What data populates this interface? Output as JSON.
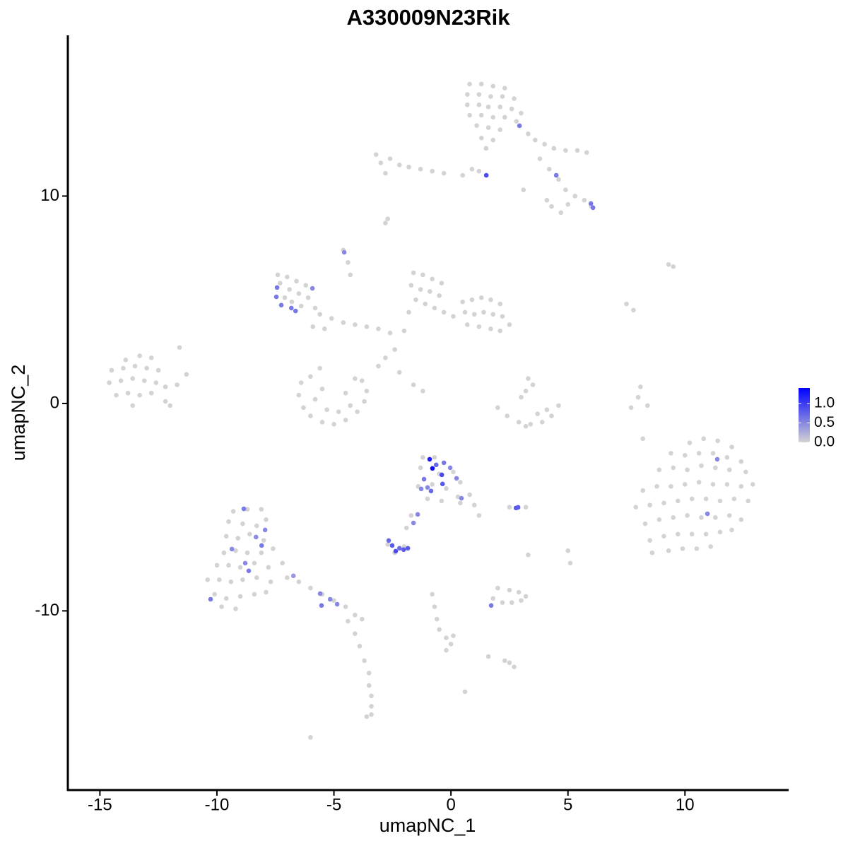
{
  "chart_data": {
    "type": "scatter",
    "title": "A330009N23Rik",
    "x_label": "umapNC_1",
    "y_label": "umapNC_2",
    "xlim": [
      -16.37,
      14.4
    ],
    "ylim": [
      -18.64,
      17.75
    ],
    "xticks": [
      -15,
      -10,
      -5,
      0,
      5,
      10
    ],
    "yticks": [
      -10,
      0,
      10
    ],
    "colorbar": {
      "lim": [
        0,
        1.4
      ],
      "ticks": [
        {
          "value": 0,
          "label": "0.0"
        },
        0.5,
        {
          "value": 1,
          "label": "1.0"
        }
      ],
      "colors": [
        "#d3d3d3",
        "#0000ff"
      ]
    },
    "x": [
      0.8,
      1.3,
      1.8,
      2.3,
      0.7,
      1.2,
      1.7,
      2.2,
      2.7,
      0.7,
      1.2,
      1.6,
      2.1,
      2.6,
      3.0,
      0.8,
      1.3,
      1.8,
      2.3,
      2.8,
      1.1,
      1.6,
      2.1,
      1.3,
      1.8,
      1.5,
      3.3,
      3.6,
      4.0,
      4.4,
      4.9,
      5.4,
      5.8,
      3.8,
      4.2,
      4.6,
      4.9,
      5.3,
      5.7,
      6.0,
      5.0,
      4.3,
      4.7,
      4.1,
      3.1,
      1.2,
      -3.2,
      -3.0,
      -2.6,
      -2.2,
      -1.8,
      -1.3,
      -0.8,
      -0.3,
      0.5,
      0.9,
      -2.8,
      -2.8,
      -2.7,
      -4.6,
      -4.4,
      -4.3,
      -7.4,
      -7.0,
      -6.6,
      -6.2,
      -7.3,
      -6.9,
      -6.5,
      -6.1,
      -7.1,
      -6.8,
      -6.4,
      -5.8,
      -5.6,
      -5.1,
      -4.6,
      -4.1,
      -3.6,
      -3.1,
      -2.6,
      -2.0,
      -5.9,
      -5.4,
      -2.4,
      -2.8,
      -3.1,
      -2.2,
      -1.6,
      -1.2,
      -1.6,
      -1.2,
      -0.8,
      -0.4,
      -1.7,
      -1.3,
      -0.9,
      -0.5,
      -1.5,
      -1.1,
      -0.7,
      -0.3,
      0.1,
      -1.8,
      0.5,
      0.9,
      1.3,
      1.7,
      2.1,
      0.6,
      1.0,
      1.4,
      1.8,
      2.2,
      2.5,
      1.2,
      1.7,
      2.1,
      0.7,
      -5.6,
      -6.4,
      -6.5,
      -6.3,
      -6.0,
      -5.5,
      -5.0,
      -4.5,
      -4.0,
      -3.7,
      -3.6,
      -3.8,
      -5.8,
      -5.3,
      -4.8,
      -4.3,
      -5.5,
      -4.5,
      -4.1,
      -6.0,
      -13.9,
      -13.3,
      -12.8,
      -14.5,
      -14.0,
      -13.5,
      -13.0,
      -12.5,
      -14.6,
      -14.1,
      -13.6,
      -13.1,
      -12.6,
      -12.2,
      -14.3,
      -13.8,
      -13.3,
      -12.8,
      -13.6,
      -12.2,
      -12.0,
      -11.6,
      -11.3,
      -11.7,
      2.0,
      2.4,
      2.9,
      3.4,
      3.9,
      4.3,
      4.6,
      3.2,
      3.7,
      4.1,
      3.3,
      3.2,
      3.5,
      3.0,
      8.4,
      8.0,
      8.1,
      7.7,
      9.3,
      9.5,
      7.5,
      7.8,
      8.2,
      10.2,
      10.8,
      11.4,
      12.0,
      9.4,
      10.0,
      10.6,
      11.2,
      11.8,
      12.4,
      8.9,
      9.5,
      10.1,
      10.7,
      11.3,
      11.9,
      12.6,
      8.2,
      8.8,
      9.4,
      10.0,
      10.6,
      11.2,
      11.8,
      12.4,
      12.9,
      7.9,
      8.5,
      9.1,
      9.7,
      10.3,
      10.9,
      11.5,
      12.1,
      12.7,
      8.3,
      8.9,
      9.5,
      10.1,
      10.7,
      11.3,
      11.9,
      12.4,
      8.5,
      9.1,
      9.7,
      10.3,
      10.9,
      11.5,
      12.0,
      8.6,
      9.3,
      9.9,
      10.5,
      11.1,
      -1.2,
      -0.7,
      -1.3,
      -0.5,
      0.1,
      0.4,
      -1.4,
      -0.8,
      -0.2,
      0.3,
      0.8,
      1.0,
      1.2,
      -1.0,
      -0.4,
      -1.7,
      -1.9,
      2.5,
      -2.7,
      -2.4,
      -2.0,
      3.2,
      3.3,
      5.0,
      5.1,
      0.4,
      -9.3,
      -8.7,
      -8.1,
      -9.5,
      -8.9,
      -8.3,
      -7.9,
      -9.6,
      -9.1,
      -8.6,
      -8.0,
      -9.7,
      -9.2,
      -8.7,
      -8.1,
      -7.6,
      -10.0,
      -9.5,
      -9.0,
      -8.4,
      -7.8,
      -7.2,
      -10.4,
      -9.9,
      -9.4,
      -8.9,
      -8.3,
      -7.7,
      -10.1,
      -9.6,
      -9.0,
      -8.4,
      -7.9,
      -9.8,
      -9.2,
      -7.0,
      -6.5,
      -6.0,
      -5.5,
      -5.0,
      -4.5,
      -4.1,
      -3.8,
      -4.4,
      -4.1,
      -3.9,
      -3.7,
      -3.5,
      -3.5,
      -3.4,
      -3.4,
      -3.6,
      -3.4,
      -6.0,
      -0.8,
      -0.7,
      -0.6,
      -0.5,
      -0.2,
      0.0,
      -0.2,
      0.1,
      1.8,
      2.2,
      2.6,
      3.0,
      3.2,
      2.5,
      2.9,
      2.0,
      2.3,
      2.5,
      2.7,
      1.6,
      0.6,
      2.93,
      1.51,
      4.5,
      5.98,
      6.07,
      -4.56,
      -7.43,
      -7.46,
      -7.25,
      -6.82,
      -6.64,
      -5.92,
      -0.91,
      -0.79,
      -0.63,
      -0.39,
      -1.15,
      -1.0,
      -0.3,
      -0.03,
      0.24,
      0.45,
      -0.85,
      -0.36,
      -1.27,
      -1.6,
      -1.42,
      2.87,
      2.78,
      -2.66,
      -2.51,
      -2.36,
      -2.2,
      -2.02,
      -1.84,
      11.38,
      10.96,
      -8.85,
      -8.33,
      -8.09,
      -9.36,
      -8.79,
      -8.64,
      -7.94,
      -10.27,
      -6.73,
      -5.59,
      -5.53,
      -5.16,
      -4.86,
      1.72
    ],
    "values": [
      15.4,
      15.4,
      15.3,
      15.2,
      14.9,
      14.9,
      14.8,
      14.8,
      14.7,
      14.4,
      14.4,
      14.3,
      14.3,
      14.2,
      14.0,
      13.9,
      13.9,
      13.8,
      13.8,
      13.6,
      13.4,
      13.3,
      13.2,
      12.8,
      12.7,
      12.3,
      13.0,
      12.7,
      12.5,
      12.3,
      12.2,
      12.2,
      12.1,
      11.8,
      11.3,
      10.8,
      10.3,
      10.0,
      9.8,
      9.5,
      9.6,
      9.5,
      9.2,
      9.8,
      10.3,
      11.2,
      12.0,
      11.6,
      11.8,
      11.5,
      11.4,
      11.3,
      11.2,
      11.1,
      11.0,
      11.3,
      11.1,
      8.7,
      8.9,
      7.4,
      6.8,
      6.2,
      6.2,
      6.1,
      5.9,
      5.7,
      5.8,
      5.5,
      5.3,
      5.1,
      5.1,
      4.9,
      4.7,
      4.6,
      4.3,
      4.1,
      3.9,
      3.8,
      3.7,
      3.6,
      3.4,
      3.5,
      3.7,
      3.6,
      2.6,
      2.2,
      1.8,
      1.5,
      0.9,
      0.6,
      6.3,
      6.2,
      6.0,
      5.8,
      5.7,
      5.5,
      5.4,
      5.2,
      5.0,
      4.8,
      4.6,
      4.4,
      4.2,
      4.4,
      4.9,
      5.0,
      5.1,
      5.0,
      4.8,
      4.4,
      4.3,
      4.4,
      4.3,
      4.2,
      3.8,
      3.7,
      3.6,
      3.5,
      3.8,
      1.7,
      1.0,
      0.4,
      -0.2,
      -0.6,
      -0.9,
      -1.0,
      -0.8,
      -0.4,
      0.1,
      0.6,
      1.1,
      0.2,
      -0.3,
      -0.4,
      -0.1,
      0.7,
      0.5,
      1.2,
      1.3,
      2.1,
      2.3,
      2.2,
      1.6,
      1.7,
      1.8,
      1.7,
      1.6,
      1.0,
      1.1,
      1.2,
      1.1,
      1.0,
      0.8,
      0.4,
      0.5,
      0.4,
      0.5,
      -0.1,
      0.1,
      -0.1,
      2.7,
      1.4,
      0.9,
      -0.2,
      -0.6,
      -0.9,
      -1.0,
      -0.9,
      -0.6,
      -0.1,
      -1.1,
      -0.5,
      -0.3,
      1.2,
      0.6,
      0.9,
      0.3,
      -0.1,
      0.3,
      0.8,
      -0.2,
      6.7,
      6.6,
      4.8,
      4.5,
      -1.7,
      -1.9,
      -1.7,
      -1.8,
      -2.1,
      -2.4,
      -2.5,
      -2.4,
      -2.4,
      -2.6,
      -2.8,
      -3.2,
      -3.1,
      -3.2,
      -3.0,
      -3.1,
      -3.2,
      -3.3,
      -4.2,
      -4.0,
      -4.0,
      -3.9,
      -3.8,
      -3.9,
      -3.9,
      -4.0,
      -3.9,
      -5.0,
      -4.9,
      -4.8,
      -4.7,
      -4.6,
      -4.6,
      -4.7,
      -4.6,
      -4.7,
      -5.8,
      -5.6,
      -5.5,
      -5.4,
      -5.5,
      -5.5,
      -5.4,
      -5.6,
      -6.6,
      -6.4,
      -6.3,
      -6.3,
      -6.3,
      -6.2,
      -6.1,
      -7.2,
      -7.1,
      -7.0,
      -7.0,
      -6.9,
      -2.6,
      -2.6,
      -3.1,
      -3.4,
      -3.3,
      -3.8,
      -4.0,
      -3.9,
      -4.1,
      -4.5,
      -4.4,
      -4.9,
      -5.4,
      -4.6,
      -4.7,
      -5.4,
      -6.0,
      -5.0,
      -6.8,
      -7.2,
      -6.9,
      -5.0,
      -7.3,
      -7.1,
      -7.7,
      -4.8,
      -5.2,
      -5.1,
      -5.1,
      -5.7,
      -5.8,
      -5.9,
      -5.6,
      -6.4,
      -6.5,
      -6.3,
      -6.6,
      -7.2,
      -7.1,
      -7.2,
      -7.2,
      -7.0,
      -7.8,
      -7.8,
      -7.9,
      -7.7,
      -7.9,
      -7.7,
      -8.5,
      -8.5,
      -8.6,
      -8.5,
      -8.4,
      -8.6,
      -9.2,
      -9.4,
      -9.3,
      -9.2,
      -9.1,
      -9.8,
      -9.9,
      -8.4,
      -8.6,
      -8.9,
      -9.2,
      -9.5,
      -9.8,
      -10.2,
      -10.4,
      -10.5,
      -11.1,
      -11.7,
      -12.4,
      -13.0,
      -13.6,
      -14.1,
      -14.6,
      -15.1,
      -15.0,
      -16.1,
      -9.2,
      -9.8,
      -10.4,
      -10.9,
      -11.3,
      -11.6,
      -11.9,
      -11.2,
      -9.4,
      -9.6,
      -9.6,
      -9.5,
      -9.3,
      -9.0,
      -9.1,
      -8.9,
      -12.4,
      -12.5,
      -12.7,
      -12.2,
      -13.9,
      13.39,
      11.0,
      11.0,
      9.64,
      9.44,
      7.29,
      5.59,
      5.14,
      4.74,
      4.6,
      4.46,
      5.55,
      -2.69,
      -3.13,
      -2.96,
      -3.44,
      -3.65,
      -4.05,
      -2.86,
      -3.1,
      -3.61,
      -4.57,
      -4.22,
      -3.88,
      -4.12,
      -5.76,
      -5.35,
      -5.01,
      -5.04,
      -6.61,
      -6.85,
      -7.12,
      -6.98,
      -7.05,
      -6.98,
      -2.69,
      -5.32,
      -5.08,
      -6.44,
      -6.85,
      -7.02,
      -7.7,
      -8.07,
      -6.1,
      -9.44,
      -8.31,
      -9.17,
      -9.74,
      -9.44,
      -9.68,
      -9.74
    ],
    "expression": [
      0,
      0,
      0,
      0,
      0,
      0,
      0,
      0,
      0,
      0,
      0,
      0,
      0,
      0,
      0,
      0,
      0,
      0,
      0,
      0,
      0,
      0,
      0,
      0,
      0,
      0,
      0,
      0,
      0,
      0,
      0,
      0,
      0,
      0,
      0,
      0,
      0,
      0,
      0,
      0,
      0,
      0,
      0,
      0,
      0,
      0,
      0,
      0,
      0,
      0,
      0,
      0,
      0,
      0,
      0,
      0,
      0,
      0,
      0,
      0,
      0,
      0,
      0,
      0,
      0,
      0,
      0,
      0,
      0,
      0,
      0,
      0,
      0,
      0,
      0,
      0,
      0,
      0,
      0,
      0,
      0,
      0,
      0,
      0,
      0,
      0,
      0,
      0,
      0,
      0,
      0,
      0,
      0,
      0,
      0,
      0,
      0,
      0,
      0,
      0,
      0,
      0,
      0,
      0,
      0,
      0,
      0,
      0,
      0,
      0,
      0,
      0,
      0,
      0,
      0,
      0,
      0,
      0,
      0,
      0,
      0,
      0,
      0,
      0,
      0,
      0,
      0,
      0,
      0,
      0,
      0,
      0,
      0,
      0,
      0,
      0,
      0,
      0,
      0,
      0,
      0,
      0,
      0,
      0,
      0,
      0,
      0,
      0,
      0,
      0,
      0,
      0,
      0,
      0,
      0,
      0,
      0,
      0,
      0,
      0,
      0,
      0,
      0,
      0,
      0,
      0,
      0,
      0,
      0,
      0,
      0,
      0,
      0,
      0,
      0,
      0,
      0,
      0,
      0,
      0,
      0,
      0,
      0,
      0,
      0,
      0,
      0,
      0,
      0,
      0,
      0,
      0,
      0,
      0,
      0,
      0,
      0,
      0,
      0,
      0,
      0,
      0,
      0,
      0,
      0,
      0,
      0,
      0,
      0,
      0,
      0,
      0,
      0,
      0,
      0,
      0,
      0,
      0,
      0,
      0,
      0,
      0,
      0,
      0,
      0,
      0,
      0,
      0,
      0,
      0,
      0,
      0,
      0,
      0,
      0,
      0,
      0,
      0,
      0,
      0,
      0,
      0,
      0,
      0,
      0,
      0,
      0,
      0,
      0,
      0,
      0,
      0,
      0,
      0,
      0,
      0,
      0,
      0,
      0,
      0,
      0,
      0,
      0,
      0,
      0,
      0,
      0,
      0,
      0,
      0,
      0,
      0,
      0,
      0,
      0,
      0,
      0,
      0,
      0,
      0,
      0,
      0,
      0,
      0,
      0,
      0,
      0,
      0,
      0,
      0,
      0,
      0,
      0,
      0,
      0,
      0,
      0,
      0,
      0,
      0,
      0,
      0,
      0,
      0,
      0,
      0,
      0,
      0,
      0,
      0,
      0,
      0,
      0,
      0,
      0,
      0,
      0,
      0,
      0,
      0,
      0,
      0,
      0,
      0,
      0,
      0,
      0,
      0,
      0,
      0,
      0,
      0,
      0,
      0,
      0,
      0,
      0,
      0,
      0,
      0,
      0,
      0,
      0.6,
      0.9,
      0.6,
      0.6,
      0.6,
      0.5,
      0.6,
      0.6,
      0.6,
      0.6,
      0.6,
      0.5,
      1.2,
      1.3,
      0.7,
      0.9,
      0.6,
      0.5,
      0.6,
      0.5,
      0.5,
      0.5,
      0.7,
      0.8,
      0.5,
      0.5,
      0.5,
      0.8,
      0.8,
      0.7,
      0.8,
      0.9,
      0.7,
      0.8,
      0.8,
      0.5,
      0.5,
      0.6,
      0.5,
      0.6,
      0.5,
      0.5,
      0.6,
      0.5,
      0.6,
      0.4,
      0.5,
      0.6,
      0.5,
      0.5,
      0.6
    ]
  }
}
